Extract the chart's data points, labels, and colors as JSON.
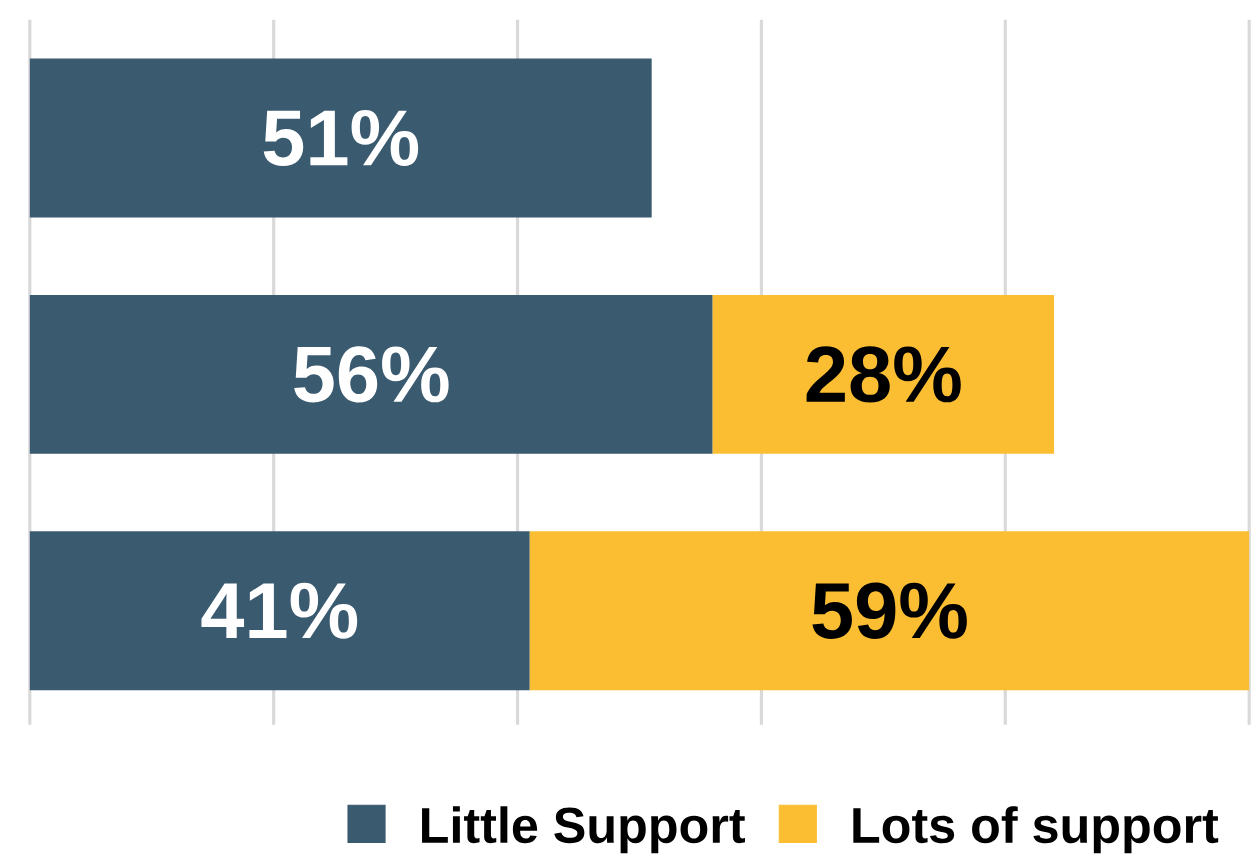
{
  "chart_data": {
    "type": "bar",
    "orientation": "horizontal",
    "stacked": true,
    "categories": [
      null,
      null,
      null
    ],
    "series": [
      {
        "name": "Little Support",
        "color": "#3a5a70",
        "values": [
          51,
          56,
          41
        ],
        "value_labels": [
          "51%",
          "56%",
          "41%"
        ]
      },
      {
        "name": "Lots of support",
        "color": "#fbbe33",
        "values": [
          null,
          28,
          59
        ],
        "value_labels": [
          null,
          "28%",
          "59%"
        ]
      }
    ],
    "xlim": [
      0,
      100
    ],
    "xticks": [
      {
        "value": 0,
        "label": null
      },
      {
        "value": 20,
        "label": null
      },
      {
        "value": 40,
        "label": null
      },
      {
        "value": 60,
        "label": null
      },
      {
        "value": 80,
        "label": null
      },
      {
        "value": 100,
        "label": null
      }
    ],
    "grid": "x",
    "legend": "bottom"
  }
}
